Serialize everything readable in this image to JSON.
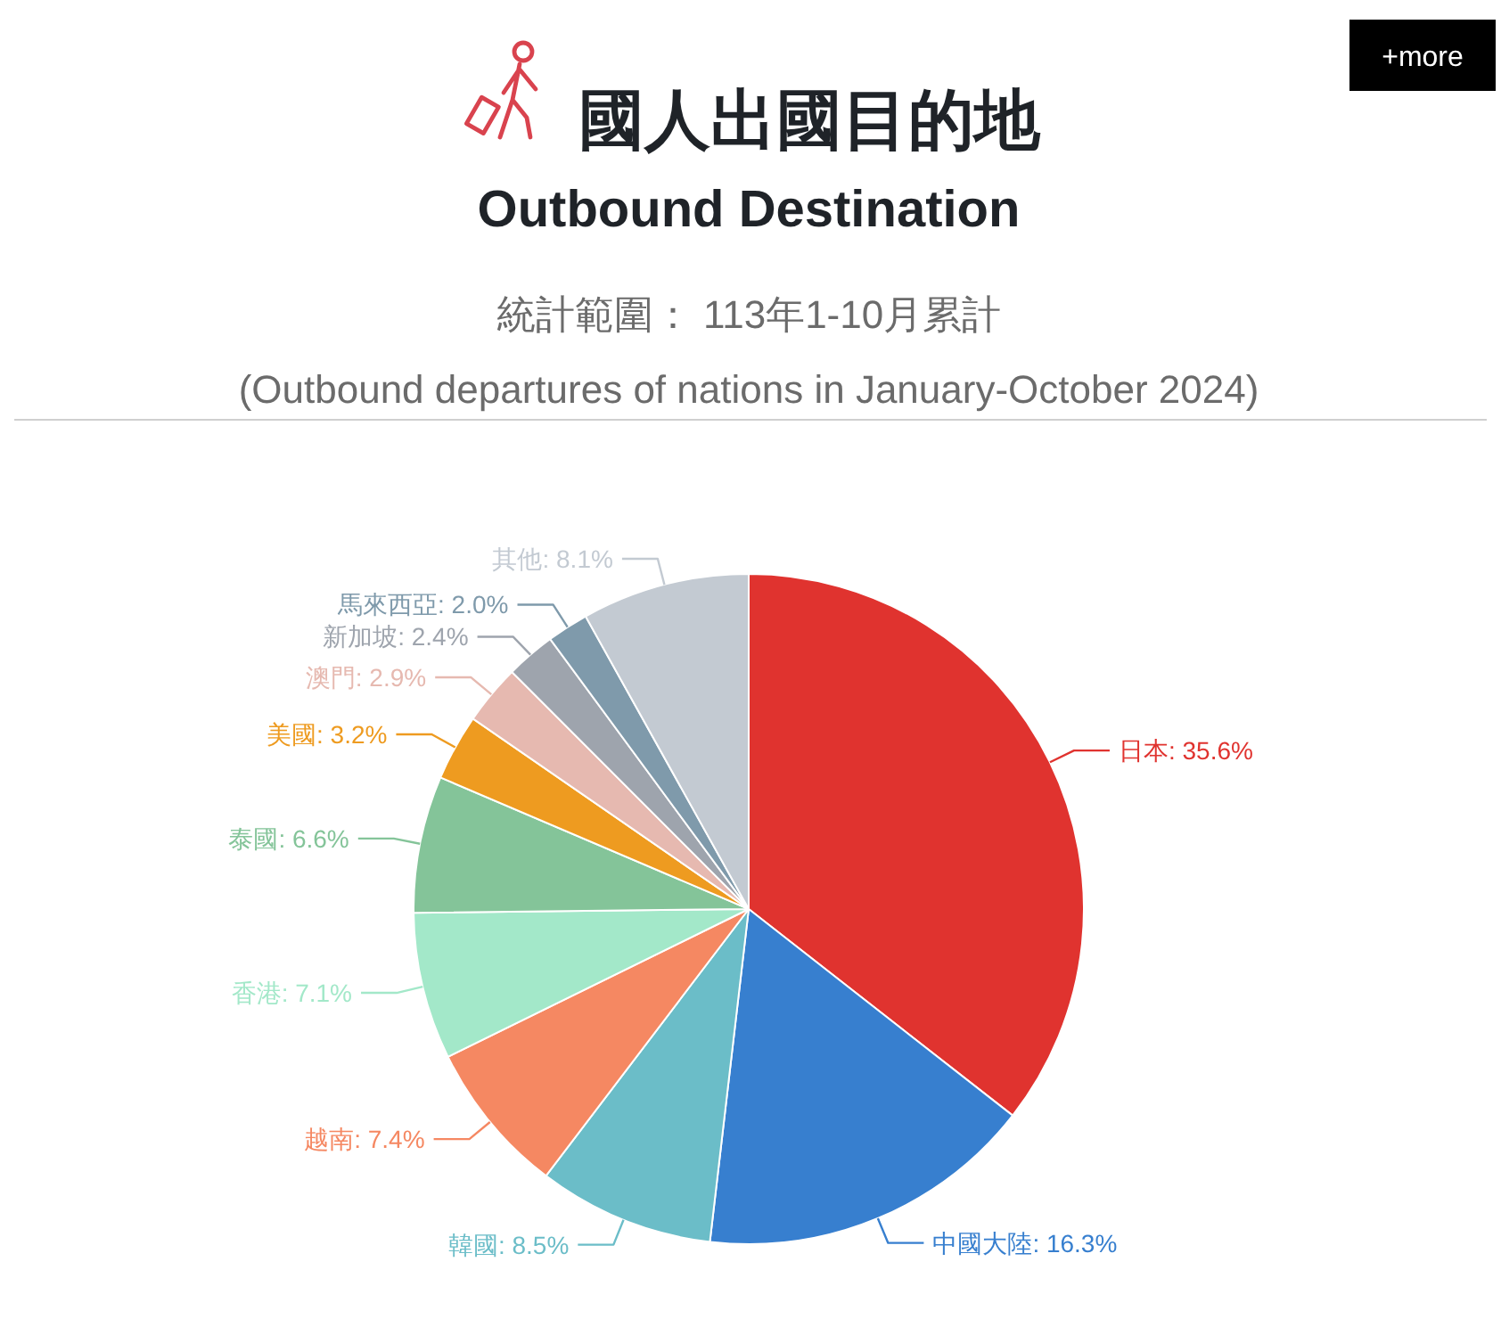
{
  "chart_data": {
    "type": "pie",
    "title": "國人出國目的地",
    "subtitle": "Outbound Destination",
    "annotations": [
      "統計範圍： 113年1-10月累計",
      "(Outbound departures of nations in January-October 2024)",
      "+more"
    ],
    "categories": [
      "日本",
      "中國大陸",
      "韓國",
      "越南",
      "香港",
      "泰國",
      "美國",
      "澳門",
      "新加坡",
      "馬來西亞",
      "其他"
    ],
    "values": [
      35.6,
      16.3,
      8.5,
      7.4,
      7.1,
      6.6,
      3.2,
      2.9,
      2.4,
      2.0,
      8.1
    ],
    "colors": [
      "#e0332f",
      "#377fcf",
      "#6bbdc8",
      "#f58862",
      "#a3e8c9",
      "#84c499",
      "#ee9b20",
      "#e6b9b0",
      "#9ea4ad",
      "#7f9aab",
      "#c3cad2"
    ],
    "value_labels": [
      "35.6%",
      "16.3%",
      "8.5%",
      "7.4%",
      "7.1%",
      "6.6%",
      "3.2%",
      "2.9%",
      "2.4%",
      "2.0%",
      "8.1%"
    ]
  }
}
